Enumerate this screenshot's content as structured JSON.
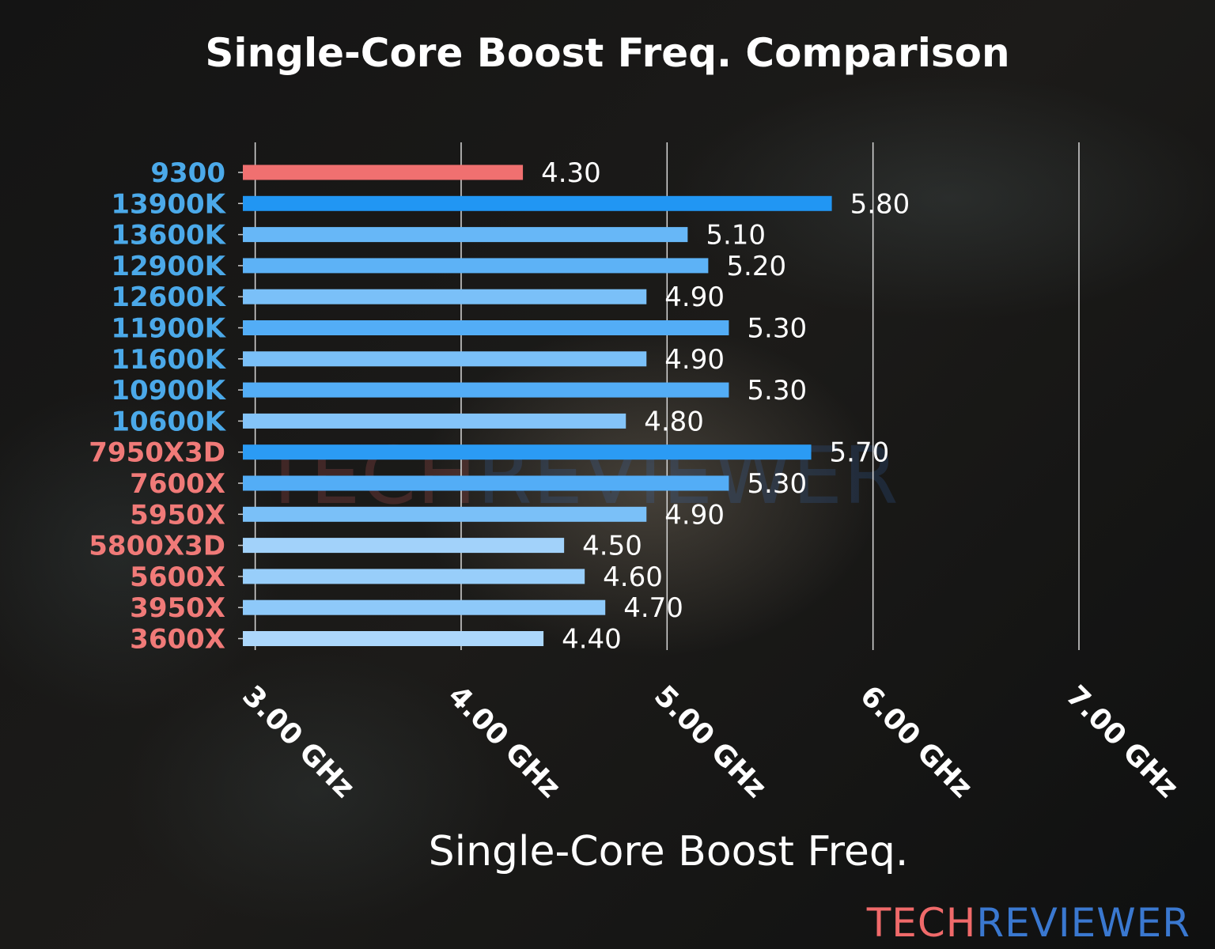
{
  "chart_data": {
    "type": "bar",
    "orientation": "horizontal",
    "title": "Single-Core Boost Freq. Comparison",
    "xlabel": "Single-Core Boost Freq.",
    "ylabel": "",
    "xlim": [
      2.94,
      7.0
    ],
    "xticks": [
      3,
      4,
      5,
      6,
      7
    ],
    "xtick_labels": [
      "3.00 GHz",
      "4.00 GHz",
      "5.00 GHz",
      "6.00 GHz",
      "7.00 GHz"
    ],
    "grid": "vertical",
    "categories": [
      "9300",
      "13900K",
      "13600K",
      "12900K",
      "12600K",
      "11900K",
      "11600K",
      "10900K",
      "10600K",
      "7950X3D",
      "7600X",
      "5950X",
      "5800X3D",
      "5600X",
      "3950X",
      "3600X"
    ],
    "values": [
      4.3,
      5.8,
      5.1,
      5.2,
      4.9,
      5.3,
      4.9,
      5.3,
      4.8,
      5.7,
      5.3,
      4.9,
      4.5,
      4.6,
      4.7,
      4.4
    ],
    "value_labels": [
      "4.30",
      "5.80",
      "5.10",
      "5.20",
      "4.90",
      "5.30",
      "4.90",
      "5.30",
      "4.80",
      "5.70",
      "5.30",
      "4.90",
      "4.50",
      "4.60",
      "4.70",
      "4.40"
    ],
    "label_groups": [
      "intel",
      "intel",
      "intel",
      "intel",
      "intel",
      "intel",
      "intel",
      "intel",
      "intel",
      "amd",
      "amd",
      "amd",
      "amd",
      "amd",
      "amd",
      "amd"
    ],
    "highlight_index": 0,
    "colors": {
      "highlight_bar": "#f07070",
      "bar_high": "#2196f3",
      "bar_low": "#acd7fb",
      "intel_label": "#4ba9e9",
      "amd_label": "#f07a78",
      "grid": "#d8d8d8"
    }
  },
  "watermark": {
    "part1": "TECH",
    "part2": "REVIEWER",
    "color1": "#f06a6a",
    "color2": "#3a78d0"
  }
}
